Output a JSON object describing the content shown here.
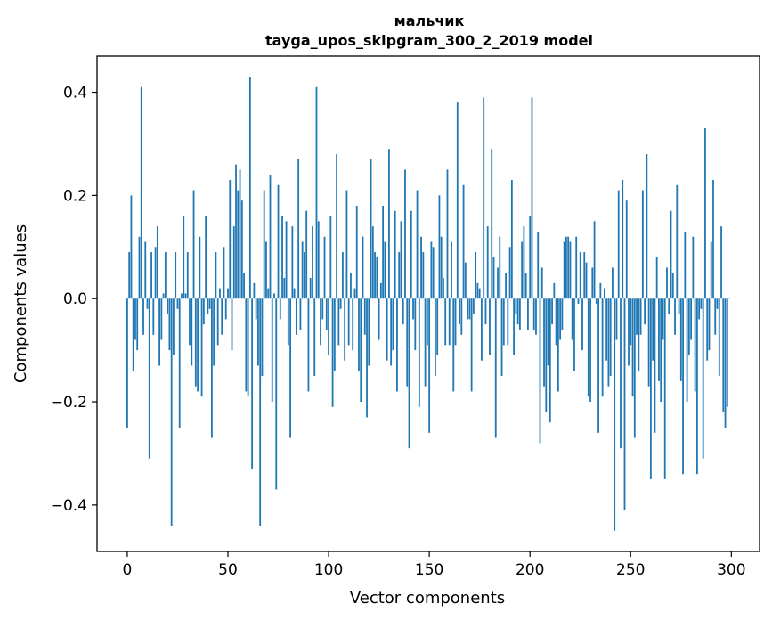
{
  "chart_data": {
    "type": "bar",
    "title": "мальчик",
    "subtitle": "tayga_upos_skipgram_300_2_2019 model",
    "xlabel": "Vector components",
    "ylabel": "Components values",
    "xlim": [
      -15,
      314
    ],
    "ylim": [
      -0.49,
      0.47
    ],
    "xticks": [
      0,
      50,
      100,
      150,
      200,
      250,
      300
    ],
    "yticks": [
      -0.4,
      -0.2,
      0.0,
      0.2,
      0.4
    ],
    "xtick_labels": [
      "0",
      "50",
      "100",
      "150",
      "200",
      "250",
      "300"
    ],
    "ytick_labels": [
      "−0.4",
      "−0.2",
      "0.0",
      "0.2",
      "0.4"
    ],
    "grid": false,
    "legend": "none",
    "bar_color": "#1f77b4",
    "values": [
      -0.25,
      0.09,
      0.2,
      -0.14,
      -0.08,
      -0.1,
      0.12,
      0.41,
      -0.07,
      0.11,
      -0.02,
      -0.31,
      0.09,
      -0.07,
      0.1,
      0.14,
      -0.13,
      -0.08,
      0.01,
      0.09,
      -0.03,
      -0.1,
      -0.44,
      -0.11,
      0.09,
      -0.02,
      -0.25,
      0.01,
      0.16,
      0.01,
      0.09,
      -0.09,
      -0.13,
      0.21,
      -0.17,
      -0.18,
      0.12,
      -0.19,
      -0.05,
      0.16,
      -0.03,
      -0.02,
      -0.27,
      -0.13,
      0.09,
      -0.09,
      0.02,
      -0.07,
      0.1,
      -0.04,
      0.02,
      0.23,
      -0.1,
      0.14,
      0.26,
      0.21,
      0.25,
      0.19,
      0.05,
      -0.18,
      -0.19,
      0.43,
      -0.33,
      0.03,
      -0.04,
      -0.13,
      -0.44,
      -0.15,
      0.21,
      0.11,
      0.02,
      0.24,
      -0.2,
      0.01,
      -0.37,
      0.22,
      -0.04,
      0.16,
      0.04,
      0.15,
      -0.09,
      -0.27,
      0.14,
      0.02,
      -0.07,
      0.27,
      -0.06,
      0.11,
      0.09,
      0.17,
      -0.18,
      0.04,
      0.14,
      -0.15,
      0.41,
      0.15,
      -0.09,
      -0.04,
      0.12,
      -0.06,
      -0.11,
      0.16,
      -0.21,
      -0.14,
      0.28,
      -0.09,
      -0.02,
      0.09,
      -0.12,
      0.21,
      -0.09,
      0.05,
      -0.1,
      0.02,
      0.18,
      -0.14,
      -0.2,
      0.12,
      -0.07,
      -0.23,
      -0.13,
      0.27,
      0.14,
      0.09,
      0.08,
      -0.08,
      0.03,
      0.18,
      0.11,
      -0.12,
      0.29,
      -0.13,
      -0.1,
      0.17,
      -0.18,
      0.09,
      0.15,
      -0.05,
      0.25,
      -0.17,
      -0.29,
      0.17,
      -0.04,
      -0.1,
      0.21,
      -0.21,
      0.12,
      0.09,
      -0.17,
      -0.09,
      -0.26,
      0.11,
      0.1,
      -0.15,
      -0.11,
      0.2,
      0.12,
      0.04,
      -0.09,
      0.25,
      -0.09,
      0.11,
      -0.18,
      -0.09,
      0.38,
      -0.05,
      -0.07,
      0.22,
      0.07,
      -0.04,
      -0.04,
      -0.18,
      -0.03,
      0.09,
      0.03,
      0.02,
      -0.12,
      0.39,
      -0.05,
      0.14,
      -0.11,
      0.29,
      0.08,
      -0.27,
      0.06,
      0.12,
      -0.15,
      -0.09,
      0.05,
      -0.09,
      0.1,
      0.23,
      -0.11,
      -0.03,
      -0.05,
      -0.06,
      0.11,
      0.14,
      0.05,
      -0.06,
      0.16,
      0.39,
      -0.06,
      -0.07,
      0.13,
      -0.28,
      0.06,
      -0.17,
      -0.22,
      -0.13,
      -0.24,
      -0.05,
      0.03,
      -0.09,
      -0.18,
      -0.08,
      -0.06,
      0.11,
      0.12,
      0.12,
      0.11,
      -0.08,
      -0.14,
      0.12,
      -0.01,
      0.09,
      -0.1,
      0.09,
      0.07,
      -0.19,
      -0.2,
      0.06,
      0.15,
      -0.01,
      -0.26,
      0.03,
      -0.19,
      0.02,
      -0.12,
      -0.17,
      -0.15,
      0.06,
      -0.45,
      -0.08,
      0.21,
      -0.29,
      0.23,
      -0.41,
      0.19,
      -0.13,
      -0.09,
      -0.19,
      -0.27,
      -0.07,
      -0.14,
      -0.07,
      0.21,
      -0.05,
      0.28,
      -0.17,
      -0.35,
      -0.12,
      -0.26,
      0.08,
      -0.16,
      -0.2,
      -0.08,
      -0.35,
      0.06,
      -0.03,
      0.17,
      0.05,
      -0.07,
      0.22,
      -0.03,
      -0.16,
      -0.34,
      0.13,
      -0.2,
      -0.11,
      -0.08,
      0.12,
      -0.18,
      -0.34,
      -0.04,
      -0.02,
      -0.31,
      0.33,
      -0.12,
      -0.1,
      0.11,
      0.23,
      -0.07,
      -0.02,
      -0.15,
      0.14,
      -0.22,
      -0.25,
      -0.21,
      0.0
    ]
  }
}
